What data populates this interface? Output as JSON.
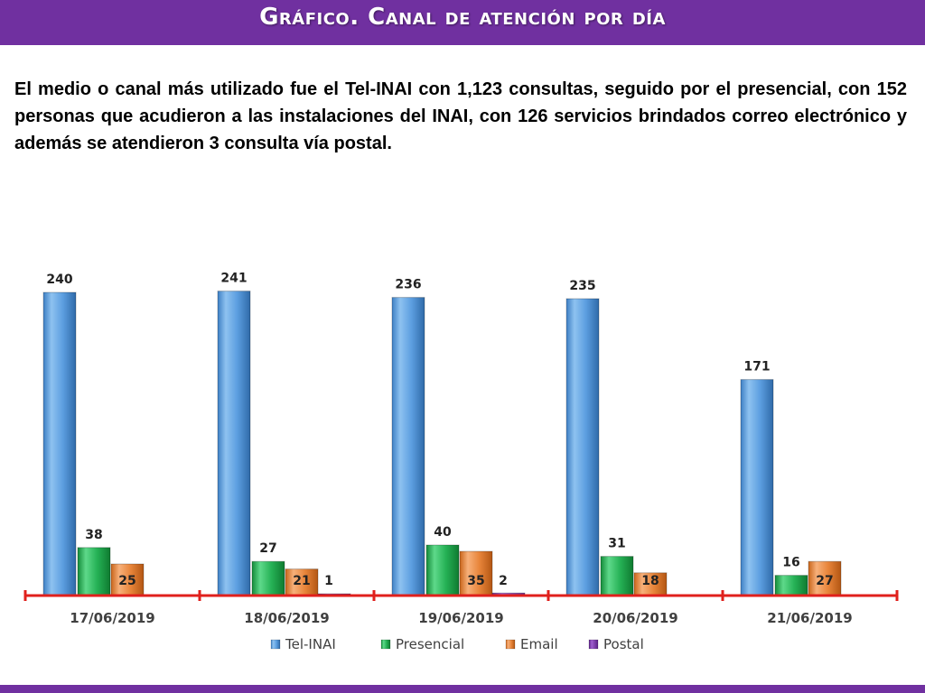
{
  "title": "Gráfico. Canal de atención por día",
  "intro_text": "El medio o canal más utilizado fue el Tel-INAI con 1,123 consultas, seguido por el presencial, con 152 personas que acudieron a las instalaciones del INAI, con 126 servicios brindados correo electrónico y además se atendieron 3 consulta vía postal.",
  "colors": {
    "header": "#7030a0",
    "Tel-INAI": "#4a90d9",
    "Presencial": "#1fa64a",
    "Email": "#e07b2a",
    "Postal": "#7030a0",
    "axis": "#e0201c"
  },
  "chart_data": {
    "type": "bar",
    "categories": [
      "17/06/2019",
      "18/06/2019",
      "19/06/2019",
      "20/06/2019",
      "21/06/2019"
    ],
    "series": [
      {
        "name": "Tel-INAI",
        "values": [
          240,
          241,
          236,
          235,
          171
        ]
      },
      {
        "name": "Presencial",
        "values": [
          38,
          27,
          40,
          31,
          16
        ]
      },
      {
        "name": "Email",
        "values": [
          25,
          21,
          35,
          18,
          27
        ]
      },
      {
        "name": "Postal",
        "values": [
          0,
          1,
          2,
          0,
          0
        ]
      }
    ],
    "data_labels": [
      [
        "240",
        "38",
        "25",
        ""
      ],
      [
        "241",
        "27",
        "21",
        "1"
      ],
      [
        "236",
        "40",
        "35",
        "2"
      ],
      [
        "235",
        "31",
        "18",
        ""
      ],
      [
        "171",
        "16",
        "27",
        ""
      ]
    ],
    "ylim": [
      0,
      250
    ],
    "grid": false,
    "legend_position": "bottom"
  }
}
